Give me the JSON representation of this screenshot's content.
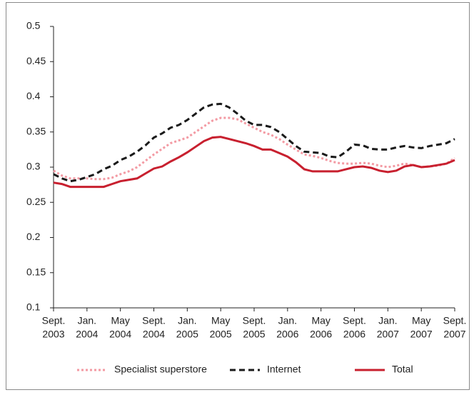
{
  "chart_data": {
    "type": "line",
    "categories": [
      [
        "Sept.",
        "2003"
      ],
      null,
      null,
      null,
      [
        "Jan.",
        "2004"
      ],
      null,
      null,
      null,
      [
        "May",
        "2004"
      ],
      null,
      null,
      null,
      [
        "Sept.",
        "2004"
      ],
      null,
      null,
      null,
      [
        "Jan.",
        "2005"
      ],
      null,
      null,
      null,
      [
        "May",
        "2005"
      ],
      null,
      null,
      null,
      [
        "Sept.",
        "2005"
      ],
      null,
      null,
      null,
      [
        "Jan.",
        "2006"
      ],
      null,
      null,
      null,
      [
        "May",
        "2006"
      ],
      null,
      null,
      null,
      [
        "Sept.",
        "2006"
      ],
      null,
      null,
      null,
      [
        "Jan.",
        "2007"
      ],
      null,
      null,
      null,
      [
        "May",
        "2007"
      ],
      null,
      null,
      null,
      [
        "Sept.",
        "2007"
      ]
    ],
    "series": [
      {
        "name": "Specialist superstore",
        "color": "#f39aa3",
        "dash": "dotted",
        "values": [
          0.295,
          0.288,
          0.284,
          0.284,
          0.284,
          0.283,
          0.283,
          0.285,
          0.29,
          0.294,
          0.3,
          0.309,
          0.318,
          0.326,
          0.334,
          0.338,
          0.342,
          0.35,
          0.358,
          0.366,
          0.37,
          0.37,
          0.368,
          0.362,
          0.356,
          0.35,
          0.346,
          0.34,
          0.332,
          0.325,
          0.318,
          0.316,
          0.313,
          0.309,
          0.306,
          0.305,
          0.305,
          0.306,
          0.305,
          0.302,
          0.3,
          0.302,
          0.305,
          0.303,
          0.3,
          0.301,
          0.302,
          0.305,
          0.313
        ]
      },
      {
        "name": "Internet",
        "color": "#1a1a1a",
        "dash": "dashed",
        "values": [
          0.29,
          0.284,
          0.28,
          0.282,
          0.286,
          0.29,
          0.297,
          0.302,
          0.31,
          0.315,
          0.322,
          0.331,
          0.342,
          0.348,
          0.356,
          0.36,
          0.367,
          0.376,
          0.385,
          0.389,
          0.39,
          0.385,
          0.376,
          0.366,
          0.36,
          0.36,
          0.357,
          0.35,
          0.34,
          0.33,
          0.322,
          0.321,
          0.32,
          0.315,
          0.314,
          0.322,
          0.332,
          0.331,
          0.326,
          0.325,
          0.325,
          0.328,
          0.33,
          0.328,
          0.327,
          0.33,
          0.332,
          0.334,
          0.34
        ]
      },
      {
        "name": "Total",
        "color": "#c8202f",
        "dash": "solid",
        "values": [
          0.278,
          0.276,
          0.272,
          0.272,
          0.272,
          0.272,
          0.272,
          0.276,
          0.28,
          0.282,
          0.284,
          0.291,
          0.298,
          0.301,
          0.308,
          0.314,
          0.321,
          0.329,
          0.337,
          0.342,
          0.343,
          0.34,
          0.337,
          0.334,
          0.33,
          0.325,
          0.325,
          0.32,
          0.315,
          0.307,
          0.297,
          0.294,
          0.294,
          0.294,
          0.294,
          0.297,
          0.3,
          0.301,
          0.299,
          0.295,
          0.293,
          0.295,
          0.301,
          0.303,
          0.3,
          0.301,
          0.303,
          0.305,
          0.31
        ]
      }
    ],
    "ylim": [
      0.1,
      0.5
    ],
    "yticks": [
      0.1,
      0.15,
      0.2,
      0.25,
      0.3,
      0.35,
      0.4,
      0.45,
      0.5
    ],
    "grid": false,
    "legend": "bottom"
  }
}
